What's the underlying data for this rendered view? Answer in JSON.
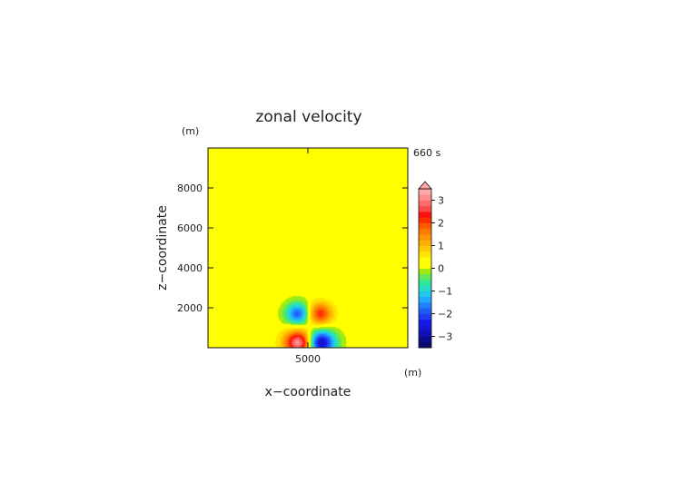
{
  "chart_data": {
    "type": "heatmap",
    "title": "zonal velocity",
    "xlabel": "x−coordinate",
    "ylabel": "z−coordinate",
    "x_unit": "(m)",
    "y_unit": "(m)",
    "time_label": "660 s",
    "xlim": [
      0,
      10000
    ],
    "ylim": [
      0,
      10000
    ],
    "x_ticks": [
      5000
    ],
    "x_tick_labels": [
      "5000"
    ],
    "y_ticks": [
      2000,
      4000,
      6000,
      8000
    ],
    "y_tick_labels": [
      "2000",
      "4000",
      "6000",
      "8000"
    ],
    "grid": false,
    "colorbar": {
      "placement": "right",
      "extend_top": true,
      "levels": [
        -3.5,
        -3.25,
        -3,
        -2.75,
        -2.5,
        -2.25,
        -2,
        -1.75,
        -1.5,
        -1.25,
        -1,
        -0.75,
        -0.5,
        -0.25,
        0,
        0.25,
        0.5,
        0.75,
        1,
        1.25,
        1.5,
        1.75,
        2,
        2.25,
        2.5,
        2.75,
        3,
        3.25,
        3.5
      ],
      "colors": [
        "#0a0a6e",
        "#0c0c8c",
        "#1010b4",
        "#1414d2",
        "#1818e8",
        "#1e3cf0",
        "#1e5ef8",
        "#2080ff",
        "#20a8ff",
        "#20c8ee",
        "#28dcc4",
        "#30e89a",
        "#60e85a",
        "#a0ec10",
        "#ffff00",
        "#ffff00",
        "#ffe400",
        "#ffc800",
        "#ffae00",
        "#ff9600",
        "#ff7a00",
        "#ff5a00",
        "#ff3000",
        "#ff1010",
        "#ff4a4a",
        "#ff6a6a",
        "#ff8c8c",
        "#ffa8a8"
      ],
      "tick_values": [
        3,
        2,
        1,
        0,
        -1,
        -2,
        -3
      ],
      "tick_labels": [
        "3",
        "2",
        "1",
        "0",
        "−1",
        "−2",
        "−3"
      ]
    },
    "features": [
      {
        "kind": "surface_max",
        "x": 4600,
        "z": 250,
        "value": 3.2
      },
      {
        "kind": "surface_min",
        "x": 5600,
        "z": 250,
        "value": -3.2
      },
      {
        "kind": "upper_min",
        "x": 4500,
        "z": 1700,
        "value": -2.0
      },
      {
        "kind": "upper_max",
        "x": 5600,
        "z": 1700,
        "value": 1.9
      }
    ]
  }
}
